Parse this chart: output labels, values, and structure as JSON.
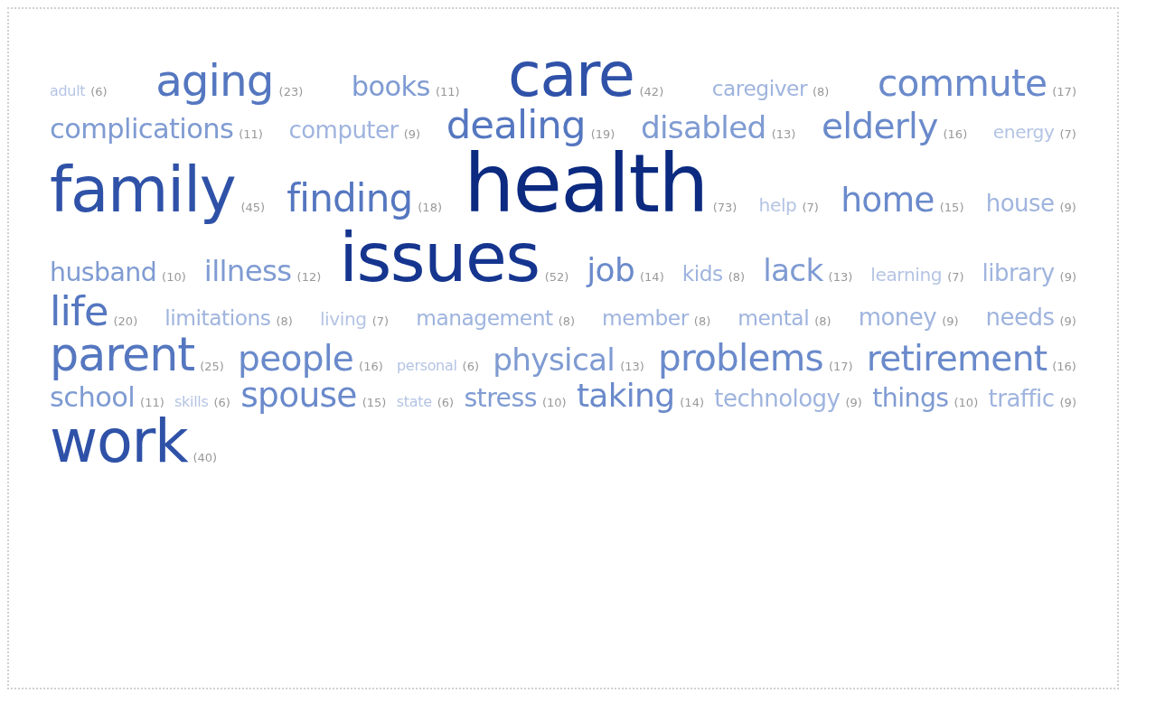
{
  "chart_data": {
    "type": "other",
    "categories": [
      "adult",
      "aging",
      "books",
      "care",
      "caregiver",
      "commute",
      "complications",
      "computer",
      "dealing",
      "disabled",
      "elderly",
      "energy",
      "family",
      "finding",
      "health",
      "help",
      "home",
      "house",
      "husband",
      "illness",
      "issues",
      "job",
      "kids",
      "lack",
      "learning",
      "library",
      "life",
      "limitations",
      "living",
      "management",
      "member",
      "mental",
      "money",
      "needs",
      "parent",
      "people",
      "personal",
      "physical",
      "problems",
      "retirement",
      "school",
      "skills",
      "spouse",
      "state",
      "stress",
      "taking",
      "technology",
      "things",
      "traffic",
      "work"
    ],
    "values": [
      6,
      23,
      11,
      42,
      8,
      17,
      11,
      9,
      19,
      13,
      16,
      7,
      45,
      18,
      73,
      7,
      15,
      9,
      10,
      12,
      52,
      14,
      8,
      13,
      7,
      9,
      20,
      8,
      7,
      8,
      8,
      8,
      9,
      9,
      25,
      16,
      6,
      13,
      17,
      16,
      11,
      6,
      15,
      6,
      10,
      14,
      9,
      10,
      9,
      40
    ],
    "value_labels": [
      "(6)",
      "(23)",
      "(11)",
      "(42)",
      "(8)",
      "(17)",
      "(11)",
      "(9)",
      "(19)",
      "(13)",
      "(16)",
      "(7)",
      "(45)",
      "(18)",
      "(73)",
      "(7)",
      "(15)",
      "(9)",
      "(10)",
      "(12)",
      "(52)",
      "(14)",
      "(8)",
      "(13)",
      "(7)",
      "(9)",
      "(20)",
      "(8)",
      "(7)",
      "(8)",
      "(8)",
      "(8)",
      "(9)",
      "(9)",
      "(25)",
      "(16)",
      "(6)",
      "(13)",
      "(17)",
      "(16)",
      "(11)",
      "(6)",
      "(15)",
      "(6)",
      "(10)",
      "(14)",
      "(9)",
      "(10)",
      "(9)",
      "(40)"
    ],
    "colors": [
      "#b4c4e4",
      "#5577c0",
      "#7f9bd2",
      "#2f52a8",
      "#9fb4de",
      "#6a8acb",
      "#7f9bd2",
      "#9fb4de",
      "#5577c0",
      "#7f9bd2",
      "#6a8acb",
      "#b4c4e4",
      "#2f52a8",
      "#5577c0",
      "#0b2a80",
      "#b4c4e4",
      "#6a8acb",
      "#9fb4de",
      "#7f9bd2",
      "#7f9bd2",
      "#15358f",
      "#6a8acb",
      "#9fb4de",
      "#7f9bd2",
      "#b4c4e4",
      "#9fb4de",
      "#5577c0",
      "#9fb4de",
      "#b4c4e4",
      "#9fb4de",
      "#9fb4de",
      "#9fb4de",
      "#9fb4de",
      "#9fb4de",
      "#5577c0",
      "#6a8acb",
      "#b4c4e4",
      "#7f9bd2",
      "#6a8acb",
      "#6a8acb",
      "#7f9bd2",
      "#b4c4e4",
      "#6a8acb",
      "#b4c4e4",
      "#7f9bd2",
      "#6a8acb",
      "#9fb4de",
      "#7f9bd2",
      "#9fb4de",
      "#2f52a8"
    ]
  }
}
